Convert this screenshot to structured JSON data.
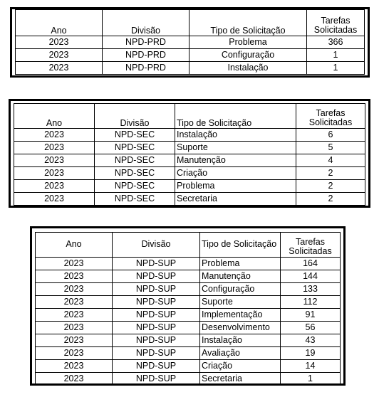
{
  "tables": [
    {
      "headers": [
        "Ano",
        "Divisão",
        "Tipo de Solicitação",
        "Tarefas",
        "Solicitadas"
      ],
      "rows": [
        [
          "2023",
          "NPD-PRD",
          "Problema",
          "366"
        ],
        [
          "2023",
          "NPD-PRD",
          "Configuração",
          "1"
        ],
        [
          "2023",
          "NPD-PRD",
          "Instalação",
          "1"
        ]
      ]
    },
    {
      "headers": [
        "Ano",
        "Divisão",
        "Tipo de Solicitação",
        "Tarefas",
        "Solicitadas"
      ],
      "rows": [
        [
          "2023",
          "NPD-SEC",
          "Instalação",
          "6"
        ],
        [
          "2023",
          "NPD-SEC",
          "Suporte",
          "5"
        ],
        [
          "2023",
          "NPD-SEC",
          "Manutenção",
          "4"
        ],
        [
          "2023",
          "NPD-SEC",
          "Criação",
          "2"
        ],
        [
          "2023",
          "NPD-SEC",
          "Problema",
          "2"
        ],
        [
          "2023",
          "NPD-SEC",
          "Secretaria",
          "2"
        ]
      ]
    },
    {
      "headers": [
        "Ano",
        "Divisão",
        "Tipo de Solicitação",
        "Tarefas",
        "Solicitadas"
      ],
      "rows": [
        [
          "2023",
          "NPD-SUP",
          "Problema",
          "164"
        ],
        [
          "2023",
          "NPD-SUP",
          "Manutenção",
          "144"
        ],
        [
          "2023",
          "NPD-SUP",
          "Configuração",
          "133"
        ],
        [
          "2023",
          "NPD-SUP",
          "Suporte",
          "112"
        ],
        [
          "2023",
          "NPD-SUP",
          "Implementação",
          "91"
        ],
        [
          "2023",
          "NPD-SUP",
          "Desenvolvimento",
          "56"
        ],
        [
          "2023",
          "NPD-SUP",
          "Instalação",
          "43"
        ],
        [
          "2023",
          "NPD-SUP",
          "Avaliação",
          "19"
        ],
        [
          "2023",
          "NPD-SUP",
          "Criação",
          "14"
        ],
        [
          "2023",
          "NPD-SUP",
          "Secretaria",
          "1"
        ]
      ]
    }
  ]
}
